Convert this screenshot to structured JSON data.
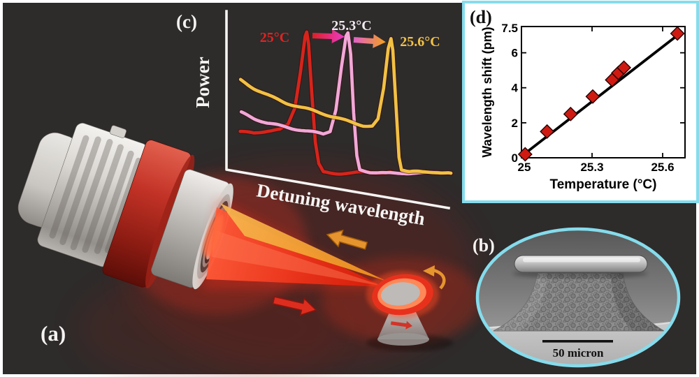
{
  "figure": {
    "background_color": "#2e2b2b",
    "outer_border_color": "#ffffff",
    "accent_cyan": "#85dcec"
  },
  "panel_a": {
    "label": "(a)",
    "icons": [
      "objective-lens",
      "excitation-beam",
      "reflected-beam",
      "microdisk-resonator",
      "beam-return-arrow-icon",
      "beam-incident-arrow-icon",
      "disk-circulation-arrow-icon",
      "pedestal-flow-arrow-icon"
    ]
  },
  "panel_b": {
    "label": "(b)",
    "scale_bar": "50 micron",
    "border_color": "#85dcec"
  },
  "panel_c": {
    "label": "(c)",
    "xlabel": "Detuning wavelength",
    "ylabel": "Power",
    "curve_labels": [
      {
        "text": "25°C",
        "color": "#e2231f"
      },
      {
        "text": "25.3°C",
        "color": "#f3eaf1"
      },
      {
        "text": "25.6°C",
        "color": "#f1c243"
      }
    ]
  },
  "panel_d": {
    "label": "(d)",
    "xlabel": "Temperature (°C)",
    "ylabel": "Wavelength shift (pm)",
    "xtick_labels": [
      "25",
      "25.3",
      "25.6"
    ],
    "ytick_labels": [
      "7.5",
      "6",
      "4",
      "2",
      "0"
    ],
    "border_color": "#85dcec"
  },
  "chart_data": [
    {
      "panel": "c",
      "type": "line",
      "title": "Resonance shift with temperature",
      "xlabel": "Detuning wavelength",
      "ylabel": "Power",
      "axes_units": "arbitrary units (unlabeled axes)",
      "legend_position": "labels above peaks",
      "grid": false,
      "annotations": [
        "25°C",
        "25.3°C",
        "25.6°C",
        "arrow 25°C→25.3°C",
        "arrow 25.3°C→25.6°C"
      ],
      "series": [
        {
          "name": "25°C",
          "color": "#d7241b",
          "peak_x": 0.35,
          "points": [
            [
              0.06,
              0.3
            ],
            [
              0.12,
              0.285
            ],
            [
              0.18,
              0.3
            ],
            [
              0.235,
              0.305
            ],
            [
              0.27,
              0.34
            ],
            [
              0.3,
              0.46
            ],
            [
              0.325,
              0.72
            ],
            [
              0.345,
              0.97
            ],
            [
              0.352,
              1.0
            ],
            [
              0.36,
              0.92
            ],
            [
              0.375,
              0.55
            ],
            [
              0.39,
              0.22
            ],
            [
              0.405,
              0.07
            ],
            [
              0.425,
              0.015
            ],
            [
              0.47,
              0.01
            ],
            [
              0.55,
              0.005
            ],
            [
              0.62,
              0.012
            ],
            [
              0.7,
              0.0
            ],
            [
              0.73,
              0.008
            ]
          ]
        },
        {
          "name": "25.3°C",
          "color": "#f2a8d8",
          "peak_x": 0.533,
          "points": [
            [
              0.065,
              0.425
            ],
            [
              0.12,
              0.385
            ],
            [
              0.18,
              0.355
            ],
            [
              0.25,
              0.335
            ],
            [
              0.32,
              0.315
            ],
            [
              0.38,
              0.295
            ],
            [
              0.425,
              0.28
            ],
            [
              0.455,
              0.3
            ],
            [
              0.48,
              0.45
            ],
            [
              0.505,
              0.75
            ],
            [
              0.525,
              0.96
            ],
            [
              0.533,
              0.98
            ],
            [
              0.545,
              0.83
            ],
            [
              0.558,
              0.42
            ],
            [
              0.572,
              0.12
            ],
            [
              0.585,
              0.025
            ],
            [
              0.63,
              0.012
            ],
            [
              0.7,
              0.006
            ],
            [
              0.78,
              0.012
            ],
            [
              0.86,
              0.004
            ],
            [
              0.93,
              0.01
            ],
            [
              0.985,
              0.004
            ]
          ]
        },
        {
          "name": "25.6°C",
          "color": "#f2c143",
          "peak_x": 0.722,
          "points": [
            [
              0.062,
              0.66
            ],
            [
              0.12,
              0.605
            ],
            [
              0.19,
              0.55
            ],
            [
              0.26,
              0.5
            ],
            [
              0.33,
              0.462
            ],
            [
              0.4,
              0.43
            ],
            [
              0.47,
              0.398
            ],
            [
              0.54,
              0.368
            ],
            [
              0.6,
              0.345
            ],
            [
              0.64,
              0.34
            ],
            [
              0.665,
              0.385
            ],
            [
              0.69,
              0.6
            ],
            [
              0.71,
              0.88
            ],
            [
              0.722,
              0.95
            ],
            [
              0.73,
              0.87
            ],
            [
              0.745,
              0.45
            ],
            [
              0.757,
              0.12
            ],
            [
              0.768,
              0.03
            ],
            [
              0.8,
              0.012
            ],
            [
              0.86,
              0.006
            ],
            [
              0.92,
              0.012
            ],
            [
              0.985,
              0.005
            ]
          ]
        }
      ]
    },
    {
      "panel": "d",
      "type": "scatter",
      "title": "Linear wavelength shift vs temperature",
      "xlabel": "Temperature (°C)",
      "ylabel": "Wavelength shift (pm)",
      "xlim": [
        25,
        25.7
      ],
      "ylim": [
        0,
        7.5
      ],
      "xticks": [
        25,
        25.3,
        25.6
      ],
      "yticks": [
        0,
        2,
        4,
        6,
        7.5
      ],
      "grid": false,
      "marker": "diamond",
      "marker_color": "#cf1a12",
      "marker_edge_color": "#250202",
      "line_color": "#000000",
      "points": {
        "x": [
          25.01,
          25.105,
          25.207,
          25.303,
          25.387,
          25.414,
          25.438,
          25.67
        ],
        "y": [
          0.2,
          1.5,
          2.5,
          3.5,
          4.45,
          4.85,
          5.15,
          7.1
        ]
      },
      "fit_line": {
        "x": [
          25.0,
          25.69
        ],
        "y": [
          0.15,
          7.2
        ]
      }
    }
  ]
}
